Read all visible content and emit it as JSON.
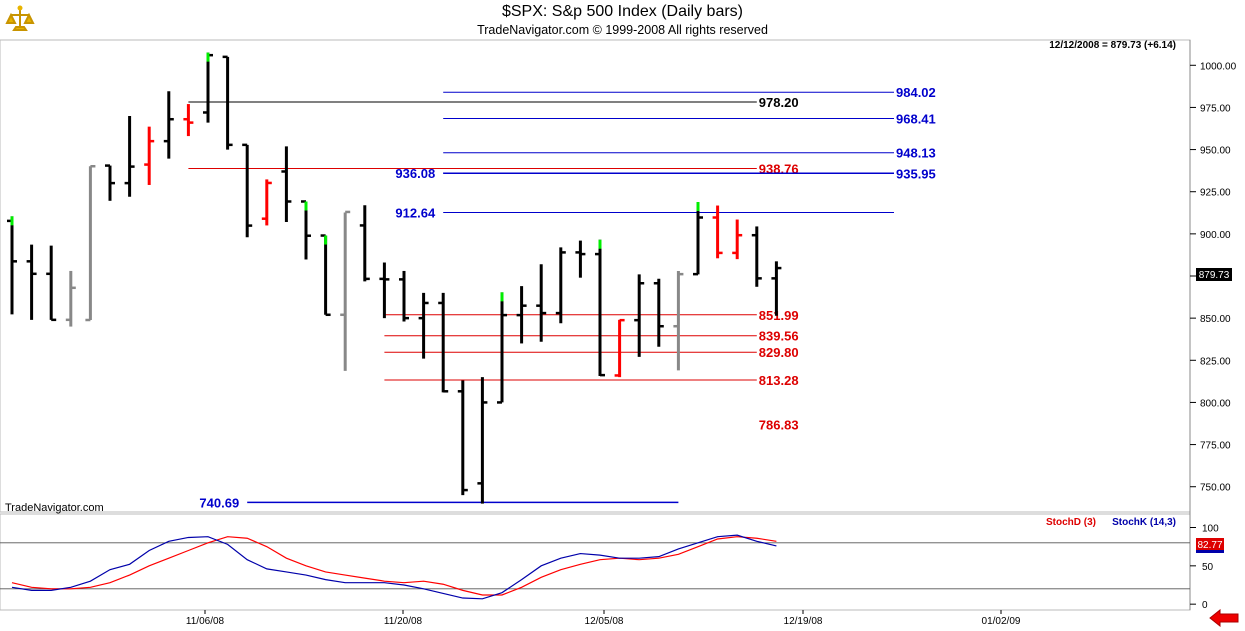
{
  "window": {
    "title": "$SPX:  S&p 500 Index  (Daily bars)",
    "subtitle": "TradeNavigator.com © 1999-2008 All rights reserved",
    "watermark": "TradeNavigator.com",
    "status": "12/12/2008 = 879.73 (+6.14)",
    "last_price_label": "879.73",
    "stoch_legend_d": "StochD (3)",
    "stoch_legend_k": "StochK (14,3)",
    "stoch_value_label": "82.77",
    "icons": {
      "logo": "trade-navigator-logo-icon",
      "nav": "left-arrow-icon"
    }
  },
  "colors": {
    "background": "#ffffff",
    "bar_default": "#000000",
    "bar_down": "#ff0000",
    "bar_up_tick": "#00ee00",
    "bar_neutral": "#888888",
    "level_blue": "#0000cc",
    "level_red": "#dd0000",
    "stoch_d": "#ff0000",
    "stoch_k": "#0000aa"
  },
  "chart_data": [
    {
      "type": "ohlc",
      "title": "$SPX:  S&p 500 Index  (Daily bars)",
      "ylim": [
        735,
        1015
      ],
      "y_ticks": [
        "1000.00",
        "975.00",
        "950.00",
        "925.00",
        "900.00",
        "875.00",
        "850.00",
        "825.00",
        "800.00",
        "775.00",
        "750.00"
      ],
      "x_ticks": [
        "11/06/08",
        "11/20/08",
        "12/05/08",
        "12/19/08",
        "01/02/09"
      ],
      "bars": [
        {
          "o": 907.7,
          "h": 910.4,
          "l": 852.2,
          "c": 883.7,
          "col": "up"
        },
        {
          "o": 883.7,
          "h": 893.6,
          "l": 849.0,
          "c": 876.3,
          "col": "default"
        },
        {
          "o": 876.3,
          "h": 893.0,
          "l": 849.0,
          "c": 849.0,
          "col": "default"
        },
        {
          "o": 849.0,
          "h": 878.0,
          "l": 845.0,
          "c": 868.0,
          "col": "neutral"
        },
        {
          "o": 848.9,
          "h": 940.1,
          "l": 848.9,
          "c": 940.1,
          "col": "neutral"
        },
        {
          "o": 940.5,
          "h": 940.5,
          "l": 919.6,
          "c": 930.1,
          "col": "default"
        },
        {
          "o": 930.1,
          "h": 969.9,
          "l": 922.0,
          "c": 939.9,
          "col": "default"
        },
        {
          "o": 941.1,
          "h": 963.6,
          "l": 929.0,
          "c": 955.0,
          "col": "down"
        },
        {
          "o": 955.0,
          "h": 984.6,
          "l": 944.6,
          "c": 968.0,
          "col": "default"
        },
        {
          "o": 968.0,
          "h": 977.0,
          "l": 958.0,
          "c": 966.0,
          "col": "down"
        },
        {
          "o": 972.0,
          "h": 1007.5,
          "l": 966.0,
          "c": 1006.0,
          "col": "up"
        },
        {
          "o": 1005.0,
          "h": 1005.0,
          "l": 950.0,
          "c": 952.8,
          "col": "default"
        },
        {
          "o": 952.8,
          "h": 952.8,
          "l": 898.0,
          "c": 904.9,
          "col": "default"
        },
        {
          "o": 909.0,
          "h": 932.3,
          "l": 905.0,
          "c": 930.2,
          "col": "down"
        },
        {
          "o": 937.0,
          "h": 951.9,
          "l": 907.0,
          "c": 919.2,
          "col": "default"
        },
        {
          "o": 919.2,
          "h": 919.2,
          "l": 884.8,
          "c": 898.9,
          "col": "up"
        },
        {
          "o": 899.0,
          "h": 899.0,
          "l": 852.0,
          "c": 852.0,
          "col": "up"
        },
        {
          "o": 852.0,
          "h": 912.7,
          "l": 818.7,
          "c": 913.0,
          "col": "neutral"
        },
        {
          "o": 905.0,
          "h": 917.0,
          "l": 871.8,
          "c": 873.3,
          "col": "default"
        },
        {
          "o": 873.3,
          "h": 883.0,
          "l": 850.0,
          "c": 873.0,
          "col": "default"
        },
        {
          "o": 873.0,
          "h": 878.0,
          "l": 848.0,
          "c": 850.0,
          "col": "default"
        },
        {
          "o": 850.0,
          "h": 865.0,
          "l": 826.0,
          "c": 859.0,
          "col": "default"
        },
        {
          "o": 859.0,
          "h": 865.0,
          "l": 806.0,
          "c": 806.6,
          "col": "default"
        },
        {
          "o": 806.6,
          "h": 813.0,
          "l": 745.0,
          "c": 748.0,
          "col": "default"
        },
        {
          "o": 752.0,
          "h": 815.0,
          "l": 740.0,
          "c": 800.0,
          "col": "default"
        },
        {
          "o": 800.0,
          "h": 865.3,
          "l": 800.0,
          "c": 851.8,
          "col": "up"
        },
        {
          "o": 851.8,
          "h": 869.0,
          "l": 835.0,
          "c": 857.4,
          "col": "default"
        },
        {
          "o": 857.4,
          "h": 882.0,
          "l": 836.0,
          "c": 853.0,
          "col": "default"
        },
        {
          "o": 853.0,
          "h": 892.0,
          "l": 847.0,
          "c": 889.0,
          "col": "default"
        },
        {
          "o": 889.0,
          "h": 896.0,
          "l": 874.0,
          "c": 888.0,
          "col": "default"
        },
        {
          "o": 888.0,
          "h": 896.5,
          "l": 815.7,
          "c": 816.2,
          "col": "up"
        },
        {
          "o": 816.0,
          "h": 849.0,
          "l": 815.0,
          "c": 848.8,
          "col": "down"
        },
        {
          "o": 848.8,
          "h": 876.0,
          "l": 827.0,
          "c": 870.7,
          "col": "default"
        },
        {
          "o": 870.7,
          "h": 873.4,
          "l": 833.0,
          "c": 845.2,
          "col": "default"
        },
        {
          "o": 845.2,
          "h": 878.0,
          "l": 819.0,
          "c": 876.1,
          "col": "neutral"
        },
        {
          "o": 876.1,
          "h": 918.9,
          "l": 876.0,
          "c": 909.7,
          "col": "up"
        },
        {
          "o": 909.7,
          "h": 916.8,
          "l": 885.5,
          "c": 888.7,
          "col": "down"
        },
        {
          "o": 888.7,
          "h": 908.5,
          "l": 885.0,
          "c": 899.2,
          "col": "down"
        },
        {
          "o": 899.2,
          "h": 904.4,
          "l": 868.6,
          "c": 873.6,
          "col": "default"
        },
        {
          "o": 873.6,
          "h": 883.7,
          "l": 851.4,
          "c": 879.7,
          "col": "default"
        }
      ],
      "levels": [
        {
          "value": 984.02,
          "label": "984.02",
          "color": "blue",
          "start_bar": 22,
          "end_bar": 45,
          "label_side": "right"
        },
        {
          "value": 978.2,
          "label": "978.20",
          "color": "black",
          "start_bar": 9,
          "end_bar": 38,
          "label_side": "right"
        },
        {
          "value": 968.41,
          "label": "968.41",
          "color": "blue",
          "start_bar": 22,
          "end_bar": 45,
          "label_side": "right"
        },
        {
          "value": 948.13,
          "label": "948.13",
          "color": "blue",
          "start_bar": 22,
          "end_bar": 45,
          "label_side": "right"
        },
        {
          "value": 938.76,
          "label": "938.76",
          "color": "red",
          "start_bar": 9,
          "end_bar": 38,
          "label_side": "right"
        },
        {
          "value": 936.08,
          "label": "936.08",
          "color": "blue",
          "start_bar": 22,
          "end_bar": 45,
          "label_side": "left"
        },
        {
          "value": 935.95,
          "label": "935.95",
          "color": "blue",
          "start_bar": 22,
          "end_bar": 45,
          "label_side": "right"
        },
        {
          "value": 912.64,
          "label": "912.64",
          "color": "blue",
          "start_bar": 22,
          "end_bar": 45,
          "label_side": "left"
        },
        {
          "value": 851.99,
          "label": "851.99",
          "color": "red",
          "start_bar": 19,
          "end_bar": 38,
          "label_side": "right"
        },
        {
          "value": 839.56,
          "label": "839.56",
          "color": "red",
          "start_bar": 19,
          "end_bar": 38,
          "label_side": "right"
        },
        {
          "value": 829.8,
          "label": "829.80",
          "color": "red",
          "start_bar": 19,
          "end_bar": 38,
          "label_side": "right"
        },
        {
          "value": 813.28,
          "label": "813.28",
          "color": "red",
          "start_bar": 19,
          "end_bar": 38,
          "label_side": "right"
        },
        {
          "value": 786.83,
          "label": "786.83",
          "color": "red",
          "start_bar": 38,
          "end_bar": 38,
          "label_side": "right",
          "no_line": true
        },
        {
          "value": 740.69,
          "label": "740.69",
          "color": "blue",
          "start_bar": 12,
          "end_bar": 34,
          "label_side": "left"
        }
      ]
    },
    {
      "type": "line",
      "title": "",
      "ylim": [
        -5,
        115
      ],
      "y_ticks": [
        "100",
        "50",
        "0"
      ],
      "ref_lines": [
        80,
        20
      ],
      "series": [
        {
          "name": "StochD (3)",
          "color": "red",
          "values": [
            28,
            22,
            20,
            20,
            22,
            28,
            38,
            50,
            60,
            70,
            80,
            88,
            86,
            75,
            60,
            50,
            42,
            38,
            34,
            30,
            28,
            30,
            26,
            18,
            12,
            12,
            22,
            35,
            45,
            52,
            58,
            60,
            58,
            60,
            65,
            75,
            85,
            88,
            86,
            82
          ]
        },
        {
          "name": "StochK (14,3)",
          "color": "blue",
          "values": [
            22,
            18,
            18,
            22,
            30,
            45,
            52,
            70,
            82,
            87,
            88,
            78,
            58,
            46,
            42,
            38,
            32,
            28,
            28,
            28,
            25,
            20,
            14,
            8,
            7,
            15,
            32,
            50,
            60,
            66,
            64,
            60,
            60,
            62,
            72,
            80,
            88,
            90,
            82,
            76
          ]
        }
      ]
    }
  ]
}
